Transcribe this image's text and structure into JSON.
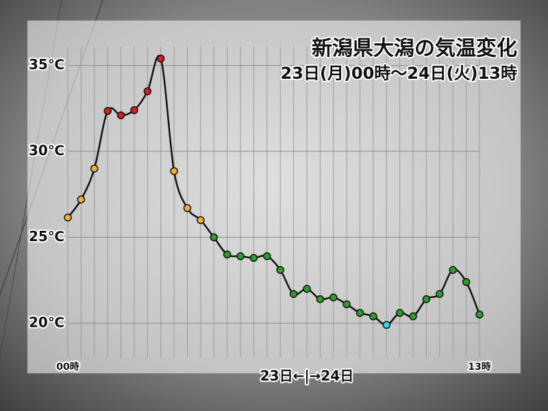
{
  "chart_data": {
    "type": "line",
    "title": "新潟県大潟の気温変化",
    "subtitle": "23日(月)00時～24日(火)13時",
    "annotation": "23日←|→24日",
    "categories": [
      "00時",
      null,
      null,
      null,
      null,
      null,
      null,
      null,
      null,
      null,
      null,
      null,
      null,
      null,
      null,
      null,
      null,
      null,
      null,
      null,
      null,
      null,
      null,
      null,
      null,
      null,
      null,
      null,
      null,
      null,
      null,
      "13時"
    ],
    "series": [
      {
        "color": "#111111",
        "values": [
          26.15,
          27.2,
          29.0,
          32.35,
          32.1,
          32.4,
          33.5,
          35.4,
          28.85,
          26.7,
          26.0,
          25.0,
          24.0,
          23.9,
          23.8,
          23.9,
          23.1,
          21.7,
          22.0,
          21.4,
          21.5,
          21.1,
          20.6,
          20.4,
          19.9,
          20.6,
          20.4,
          21.4,
          21.7,
          23.1,
          22.4,
          20.5
        ],
        "marker_colors": [
          "#f0b030",
          "#f0b030",
          "#f0b030",
          "#d42020",
          "#d42020",
          "#d42020",
          "#d42020",
          "#d42020",
          "#f0b030",
          "#f0b030",
          "#f0b030",
          "#2aa02a",
          "#2aa02a",
          "#2aa02a",
          "#2aa02a",
          "#2aa02a",
          "#2aa02a",
          "#2aa02a",
          "#2aa02a",
          "#2aa02a",
          "#2aa02a",
          "#2aa02a",
          "#2aa02a",
          "#2aa02a",
          "#30d8e8",
          "#2aa02a",
          "#2aa02a",
          "#2aa02a",
          "#2aa02a",
          "#2aa02a",
          "#2aa02a",
          "#2aa02a"
        ]
      }
    ],
    "ylim": [
      18,
      36.1
    ],
    "yticks": [
      {
        "value": 20,
        "label": "20℃"
      },
      {
        "value": 25,
        "label": "25℃"
      },
      {
        "value": 30,
        "label": "30℃"
      },
      {
        "value": 35,
        "label": "35℃"
      }
    ],
    "grid": true
  }
}
